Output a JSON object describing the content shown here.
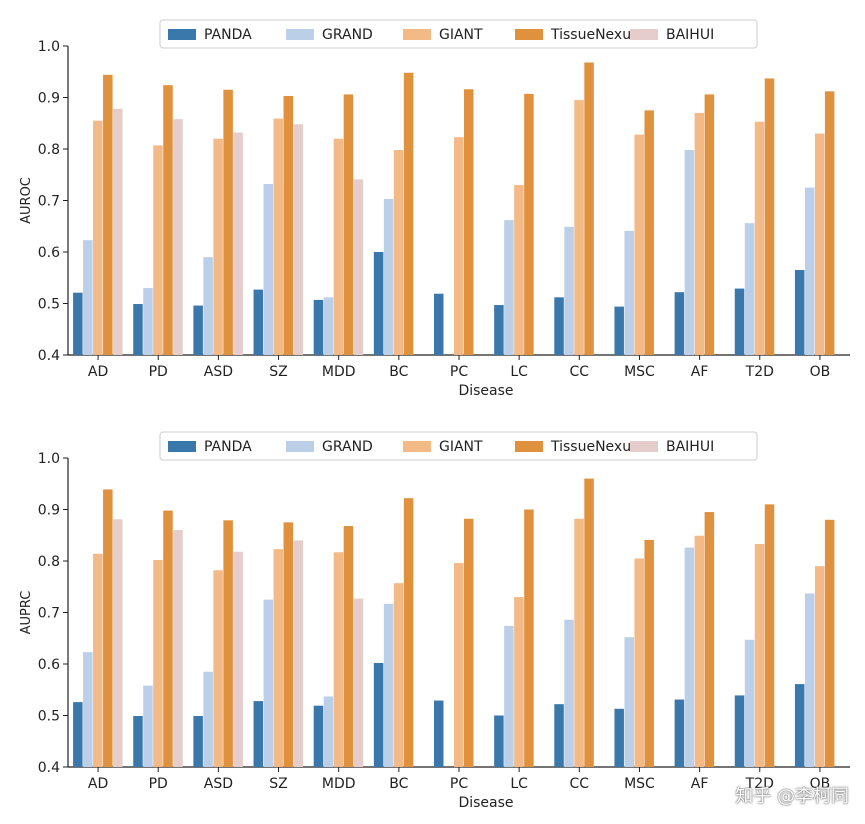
{
  "chart_data": [
    {
      "type": "bar",
      "ylabel": "AUROC",
      "xlabel": "Disease",
      "ylim": [
        0.4,
        1.0
      ],
      "yticks": [
        "0.4",
        "0.5",
        "0.6",
        "0.7",
        "0.8",
        "0.9",
        "1.0"
      ],
      "legend_position": "top",
      "categories": [
        "AD",
        "PD",
        "ASD",
        "SZ",
        "MDD",
        "BC",
        "PC",
        "LC",
        "CC",
        "MSC",
        "AF",
        "T2D",
        "OB"
      ],
      "series": [
        {
          "name": "PANDA",
          "color": "#3a78ab",
          "values": [
            0.521,
            0.499,
            0.496,
            0.527,
            0.507,
            0.6,
            0.519,
            0.497,
            0.512,
            0.494,
            0.522,
            0.529,
            0.565
          ]
        },
        {
          "name": "GRAND",
          "color": "#bccfe8",
          "values": [
            0.623,
            0.53,
            0.59,
            0.732,
            0.512,
            0.703,
            null,
            0.662,
            0.649,
            0.641,
            0.798,
            0.656,
            0.725
          ]
        },
        {
          "name": "GIANT",
          "color": "#f3b987",
          "values": [
            0.855,
            0.807,
            0.82,
            0.859,
            0.82,
            0.798,
            0.823,
            0.73,
            0.895,
            0.828,
            0.87,
            0.853,
            0.83
          ]
        },
        {
          "name": "TissueNexus",
          "color": "#e0913e",
          "values": [
            0.944,
            0.924,
            0.915,
            0.903,
            0.906,
            0.948,
            0.916,
            0.907,
            0.968,
            0.875,
            0.906,
            0.937,
            0.912
          ]
        },
        {
          "name": "BAIHUI",
          "color": "#e4cdcb",
          "values": [
            0.878,
            0.858,
            0.832,
            0.848,
            0.741,
            null,
            null,
            null,
            null,
            null,
            null,
            null,
            null
          ]
        }
      ]
    },
    {
      "type": "bar",
      "ylabel": "AUPRC",
      "xlabel": "Disease",
      "ylim": [
        0.4,
        1.0
      ],
      "yticks": [
        "0.4",
        "0.5",
        "0.6",
        "0.7",
        "0.8",
        "0.9",
        "1.0"
      ],
      "legend_position": "top",
      "categories": [
        "AD",
        "PD",
        "ASD",
        "SZ",
        "MDD",
        "BC",
        "PC",
        "LC",
        "CC",
        "MSC",
        "AF",
        "T2D",
        "OB"
      ],
      "series": [
        {
          "name": "PANDA",
          "color": "#3a78ab",
          "values": [
            0.526,
            0.499,
            0.499,
            0.528,
            0.519,
            0.602,
            0.529,
            0.5,
            0.522,
            0.513,
            0.531,
            0.539,
            0.561
          ]
        },
        {
          "name": "GRAND",
          "color": "#bccfe8",
          "values": [
            0.623,
            0.558,
            0.585,
            0.725,
            0.537,
            0.717,
            null,
            0.674,
            0.686,
            0.652,
            0.826,
            0.647,
            0.737
          ]
        },
        {
          "name": "GIANT",
          "color": "#f3b987",
          "values": [
            0.814,
            0.802,
            0.782,
            0.823,
            0.817,
            0.757,
            0.796,
            0.73,
            0.882,
            0.805,
            0.849,
            0.833,
            0.79
          ]
        },
        {
          "name": "TissueNexus",
          "color": "#e0913e",
          "values": [
            0.939,
            0.898,
            0.879,
            0.875,
            0.868,
            0.922,
            0.882,
            0.9,
            0.96,
            0.841,
            0.895,
            0.91,
            0.88
          ]
        },
        {
          "name": "BAIHUI",
          "color": "#e4cdcb",
          "values": [
            0.881,
            0.86,
            0.818,
            0.84,
            0.727,
            null,
            null,
            null,
            null,
            null,
            null,
            null,
            null
          ]
        }
      ]
    }
  ],
  "watermark": {
    "text": "知乎 @李柯同"
  }
}
